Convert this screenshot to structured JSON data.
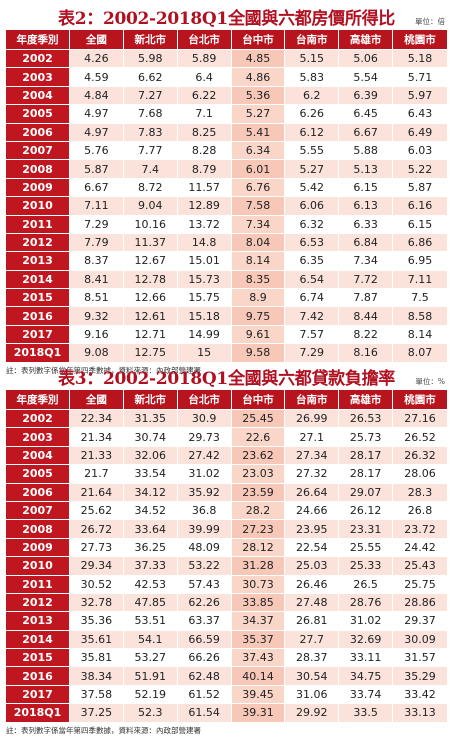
{
  "table1": {
    "title": "表2：2002-2018Q1全國與六都房價所得比",
    "unit": "單位：倍",
    "headers": [
      "年度季別",
      "全國",
      "新北市",
      "台北市",
      "台中市",
      "台南市",
      "高雄市",
      "桃園市"
    ],
    "rows": [
      [
        "2002",
        "4.26",
        "5.98",
        "5.89",
        "4.85",
        "5.15",
        "5.06",
        "5.18"
      ],
      [
        "2003",
        "4.59",
        "6.62",
        "6.4",
        "4.86",
        "5.83",
        "5.54",
        "5.71"
      ],
      [
        "2004",
        "4.84",
        "7.27",
        "6.22",
        "5.36",
        "6.2",
        "6.39",
        "5.97"
      ],
      [
        "2005",
        "4.97",
        "7.68",
        "7.1",
        "5.27",
        "6.26",
        "6.45",
        "6.43"
      ],
      [
        "2006",
        "4.97",
        "7.83",
        "8.25",
        "5.41",
        "6.12",
        "6.67",
        "6.49"
      ],
      [
        "2007",
        "5.76",
        "7.77",
        "8.28",
        "6.34",
        "5.55",
        "5.88",
        "6.03"
      ],
      [
        "2008",
        "5.87",
        "7.4",
        "8.79",
        "6.01",
        "5.27",
        "5.13",
        "5.22"
      ],
      [
        "2009",
        "6.67",
        "8.72",
        "11.57",
        "6.76",
        "5.42",
        "6.15",
        "5.87"
      ],
      [
        "2010",
        "7.11",
        "9.04",
        "12.89",
        "7.58",
        "6.06",
        "6.13",
        "6.16"
      ],
      [
        "2011",
        "7.29",
        "10.16",
        "13.72",
        "7.34",
        "6.32",
        "6.33",
        "6.15"
      ],
      [
        "2012",
        "7.79",
        "11.37",
        "14.8",
        "8.04",
        "6.53",
        "6.84",
        "6.86"
      ],
      [
        "2013",
        "8.37",
        "12.67",
        "15.01",
        "8.14",
        "6.35",
        "7.34",
        "6.95"
      ],
      [
        "2014",
        "8.41",
        "12.78",
        "15.73",
        "8.35",
        "6.54",
        "7.72",
        "7.11"
      ],
      [
        "2015",
        "8.51",
        "12.66",
        "15.75",
        "8.9",
        "6.74",
        "7.87",
        "7.5"
      ],
      [
        "2016",
        "9.32",
        "12.61",
        "15.18",
        "9.75",
        "7.42",
        "8.44",
        "8.58"
      ],
      [
        "2017",
        "9.16",
        "12.71",
        "14.99",
        "9.61",
        "7.57",
        "8.22",
        "8.14"
      ],
      [
        "2018Q1",
        "9.08",
        "12.75",
        "15",
        "9.58",
        "7.29",
        "8.16",
        "8.07"
      ]
    ],
    "note": "註：表列數字係當年第四季數據，資料來源：內政部營建署"
  },
  "table2": {
    "title": "表3：2002-2018Q1全國與六都貸款負擔率",
    "unit": "單位：%",
    "headers": [
      "年度季別",
      "全國",
      "新北市",
      "台北市",
      "台中市",
      "台南市",
      "高雄市",
      "桃園市"
    ],
    "rows": [
      [
        "2002",
        "22.34",
        "31.35",
        "30.9",
        "25.45",
        "26.99",
        "26.53",
        "27.16"
      ],
      [
        "2003",
        "21.34",
        "30.74",
        "29.73",
        "22.6",
        "27.1",
        "25.73",
        "26.52"
      ],
      [
        "2004",
        "21.33",
        "32.06",
        "27.42",
        "23.62",
        "27.34",
        "28.17",
        "26.32"
      ],
      [
        "2005",
        "21.7",
        "33.54",
        "31.02",
        "23.03",
        "27.32",
        "28.17",
        "28.06"
      ],
      [
        "2006",
        "21.64",
        "34.12",
        "35.92",
        "23.59",
        "26.64",
        "29.07",
        "28.3"
      ],
      [
        "2007",
        "25.62",
        "34.52",
        "36.8",
        "28.2",
        "24.66",
        "26.12",
        "26.8"
      ],
      [
        "2008",
        "26.72",
        "33.64",
        "39.99",
        "27.23",
        "23.95",
        "23.31",
        "23.72"
      ],
      [
        "2009",
        "27.73",
        "36.25",
        "48.09",
        "28.12",
        "22.54",
        "25.55",
        "24.42"
      ],
      [
        "2010",
        "29.34",
        "37.33",
        "53.22",
        "31.28",
        "25.03",
        "25.33",
        "25.43"
      ],
      [
        "2011",
        "30.52",
        "42.53",
        "57.43",
        "30.73",
        "26.46",
        "26.5",
        "25.75"
      ],
      [
        "2012",
        "32.78",
        "47.85",
        "62.26",
        "33.85",
        "27.48",
        "28.76",
        "28.86"
      ],
      [
        "2013",
        "35.36",
        "53.51",
        "63.37",
        "34.37",
        "26.81",
        "31.02",
        "29.37"
      ],
      [
        "2014",
        "35.61",
        "54.1",
        "66.59",
        "35.37",
        "27.7",
        "32.69",
        "30.09"
      ],
      [
        "2015",
        "35.81",
        "53.27",
        "66.26",
        "37.43",
        "28.37",
        "33.11",
        "31.57"
      ],
      [
        "2016",
        "38.34",
        "51.91",
        "62.48",
        "40.14",
        "30.54",
        "34.75",
        "35.29"
      ],
      [
        "2017",
        "37.58",
        "52.19",
        "61.52",
        "39.45",
        "31.06",
        "33.74",
        "33.42"
      ],
      [
        "2018Q1",
        "37.25",
        "52.3",
        "61.54",
        "39.31",
        "29.92",
        "33.5",
        "33.13"
      ]
    ],
    "note": "註：表列數字係當年第四季數據，資料來源：內政部營建署"
  }
}
